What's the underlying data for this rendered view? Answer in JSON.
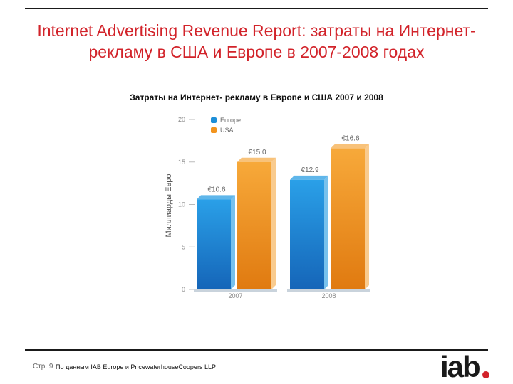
{
  "slide": {
    "title": "Internet Advertising Revenue Report: затраты на Интернет-рекламу в США и Европе в 2007-2008 годах",
    "page_number": "Стр. 9",
    "source": "По данным IAB Europe и PricewaterhouseCoopers LLP",
    "logo_text": "iab",
    "colors": {
      "title": "#d2232a",
      "europe": "#1e8fd8",
      "usa": "#f2941e",
      "logo_dot": "#d2232a"
    }
  },
  "chart_data": {
    "type": "bar",
    "title": "Затраты на Интернет- рекламу в Европе и США 2007 и 2008",
    "ylabel": "Миллиарды Евро",
    "xlabel": "",
    "categories": [
      "2007",
      "2008"
    ],
    "series": [
      {
        "name": "Europe",
        "values": [
          10.6,
          12.9
        ],
        "labels": [
          "€10.6",
          "€12.9"
        ],
        "color": "#1e8fd8"
      },
      {
        "name": "USA",
        "values": [
          15.0,
          16.6
        ],
        "labels": [
          "€15.0",
          "€16.6"
        ],
        "color": "#f2941e"
      }
    ],
    "ylim": [
      0,
      20
    ],
    "yticks": [
      "0",
      "5",
      "10",
      "15",
      "20"
    ],
    "grid": false,
    "legend": "top-left"
  }
}
